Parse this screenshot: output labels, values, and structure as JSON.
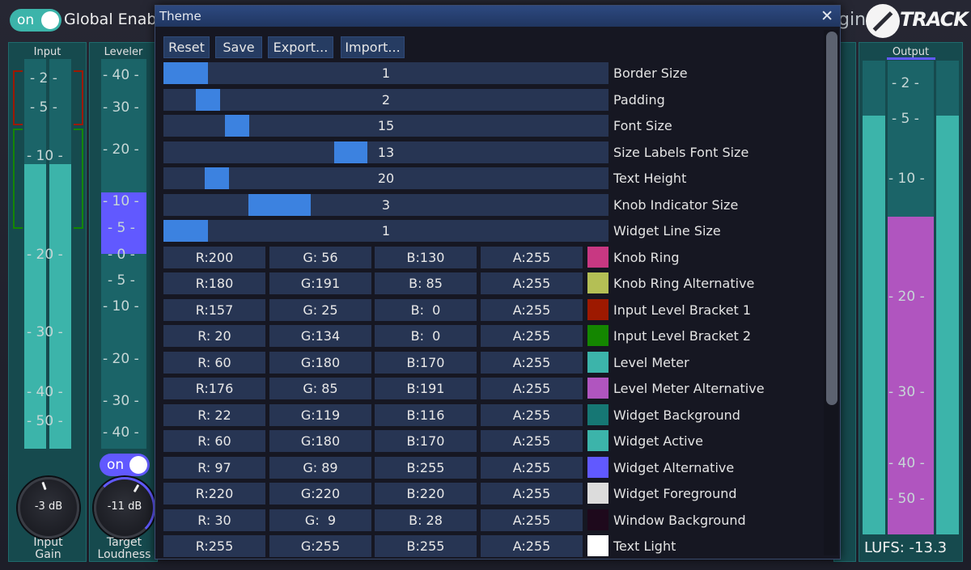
{
  "topbar": {
    "global_toggle": "on",
    "global_label": "Global Enable",
    "brand_partial": "gins",
    "brand_track": "TRACK"
  },
  "input_panel": {
    "title": "Input",
    "scale": [
      "- 2 -",
      "- 5 -",
      "- 10 -",
      "- 20 -",
      "- 30 -",
      "- 40 -",
      "- 50 -"
    ],
    "knob_value": "-3 dB",
    "knob_label_1": "Input",
    "knob_label_2": "Gain"
  },
  "leveler_panel": {
    "title": "Leveler",
    "scale": [
      "- 40 -",
      "- 30 -",
      "- 20 -",
      "- 10 -",
      "- 5 -",
      "- 0 -",
      "- 5 -",
      "- 10 -",
      "- 20 -",
      "- 30 -",
      "- 40 -"
    ],
    "toggle": "on",
    "knob_value": "-11 dB",
    "knob_label_1": "Target",
    "knob_label_2": "Loudness"
  },
  "output_panel": {
    "title": "Output",
    "scale": [
      "- 2 -",
      "- 5 -",
      "- 10 -",
      "- 20 -",
      "- 30 -",
      "- 40 -",
      "- 50 -"
    ],
    "lufs": "LUFS: -13.3"
  },
  "colors": {
    "meter": "#3cb4aa",
    "meter_alternative": "#b055bf",
    "widget_alternative": "#6159ff",
    "slider_fill": "#3c82e0"
  },
  "dialog": {
    "title": "Theme",
    "close_icon": "close-icon",
    "buttons": [
      "Reset",
      "Save",
      "Export...",
      "Import..."
    ],
    "sliders": [
      {
        "label": "Border Size",
        "value": "1",
        "fraction": 0.06
      },
      {
        "label": "Padding",
        "value": "2",
        "fraction": 0.1
      },
      {
        "label": "Font Size",
        "value": "15",
        "fraction": 0.165
      },
      {
        "label": "Size Labels Font Size",
        "value": "13",
        "fraction": 0.42
      },
      {
        "label": "Text Height",
        "value": "20",
        "fraction": 0.12
      },
      {
        "label": "Knob Indicator Size",
        "value": "3",
        "fraction": 0.26
      },
      {
        "label": "Widget Line Size",
        "value": "1",
        "fraction": 0.06
      }
    ],
    "colors": [
      {
        "r": "R:200",
        "g": "G: 56",
        "b": "B:130",
        "a": "A:255",
        "label": "Knob Ring",
        "hex": "#c83882"
      },
      {
        "r": "R:180",
        "g": "G:191",
        "b": "B: 85",
        "a": "A:255",
        "label": "Knob Ring Alternative",
        "hex": "#b4bf55"
      },
      {
        "r": "R:157",
        "g": "G: 25",
        "b": "B:  0",
        "a": "A:255",
        "label": "Input Level Bracket 1",
        "hex": "#9d1900"
      },
      {
        "r": "R: 20",
        "g": "G:134",
        "b": "B:  0",
        "a": "A:255",
        "label": "Input Level Bracket 2",
        "hex": "#148600"
      },
      {
        "r": "R: 60",
        "g": "G:180",
        "b": "B:170",
        "a": "A:255",
        "label": "Level Meter",
        "hex": "#3cb4aa"
      },
      {
        "r": "R:176",
        "g": "G: 85",
        "b": "B:191",
        "a": "A:255",
        "label": "Level Meter Alternative",
        "hex": "#b055bf"
      },
      {
        "r": "R: 22",
        "g": "G:119",
        "b": "B:116",
        "a": "A:255",
        "label": "Widget Background",
        "hex": "#167774"
      },
      {
        "r": "R: 60",
        "g": "G:180",
        "b": "B:170",
        "a": "A:255",
        "label": "Widget Active",
        "hex": "#3cb4aa"
      },
      {
        "r": "R: 97",
        "g": "G: 89",
        "b": "B:255",
        "a": "A:255",
        "label": "Widget Alternative",
        "hex": "#6159ff"
      },
      {
        "r": "R:220",
        "g": "G:220",
        "b": "B:220",
        "a": "A:255",
        "label": "Widget Foreground",
        "hex": "#dcdcdc"
      },
      {
        "r": "R: 30",
        "g": "G:  9",
        "b": "B: 28",
        "a": "A:255",
        "label": "Window Background",
        "hex": "#1e091c"
      },
      {
        "r": "R:255",
        "g": "G:255",
        "b": "B:255",
        "a": "A:255",
        "label": "Text Light",
        "hex": "#ffffff"
      }
    ]
  }
}
